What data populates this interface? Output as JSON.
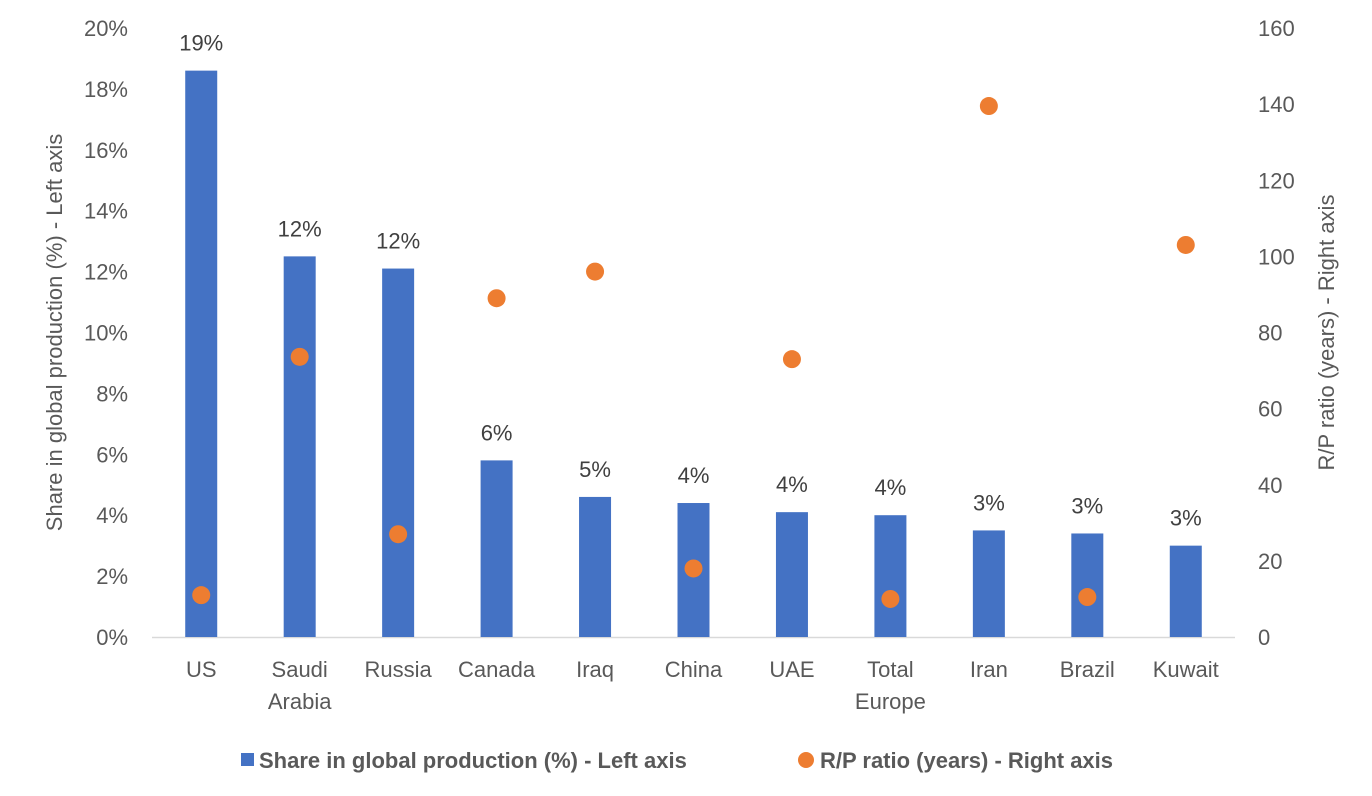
{
  "chart_data": {
    "type": "bar",
    "categories": [
      [
        "US"
      ],
      [
        "Saudi",
        "Arabia"
      ],
      [
        "Russia"
      ],
      [
        "Canada"
      ],
      [
        "Iraq"
      ],
      [
        "China"
      ],
      [
        "UAE"
      ],
      [
        "Total",
        "Europe"
      ],
      [
        "Iran"
      ],
      [
        "Brazil"
      ],
      [
        "Kuwait"
      ]
    ],
    "series": [
      {
        "name": "Share in global production (%) - Left axis",
        "type": "bar",
        "axis": "left",
        "color": "#4472C4",
        "values": [
          18.6,
          12.5,
          12.1,
          5.8,
          4.6,
          4.4,
          4.1,
          4.0,
          3.5,
          3.4,
          3.0
        ],
        "data_labels": [
          "19%",
          "12%",
          "12%",
          "6%",
          "5%",
          "4%",
          "4%",
          "4%",
          "3%",
          "3%",
          "3%"
        ]
      },
      {
        "name": "R/P ratio (years) - Right axis",
        "type": "scatter",
        "axis": "right",
        "color": "#ED7D31",
        "values": [
          11,
          73.6,
          27,
          89,
          96,
          18,
          73,
          10,
          139.5,
          10.5,
          103
        ]
      }
    ],
    "left_axis": {
      "label": "Share in global production (%) - Left axis",
      "min": 0,
      "max": 20,
      "step": 2,
      "suffix": "%"
    },
    "right_axis": {
      "label": "R/P ratio (years) - Right axis",
      "min": 0,
      "max": 160,
      "step": 20,
      "suffix": ""
    },
    "grid": false,
    "legend_position": "bottom"
  }
}
